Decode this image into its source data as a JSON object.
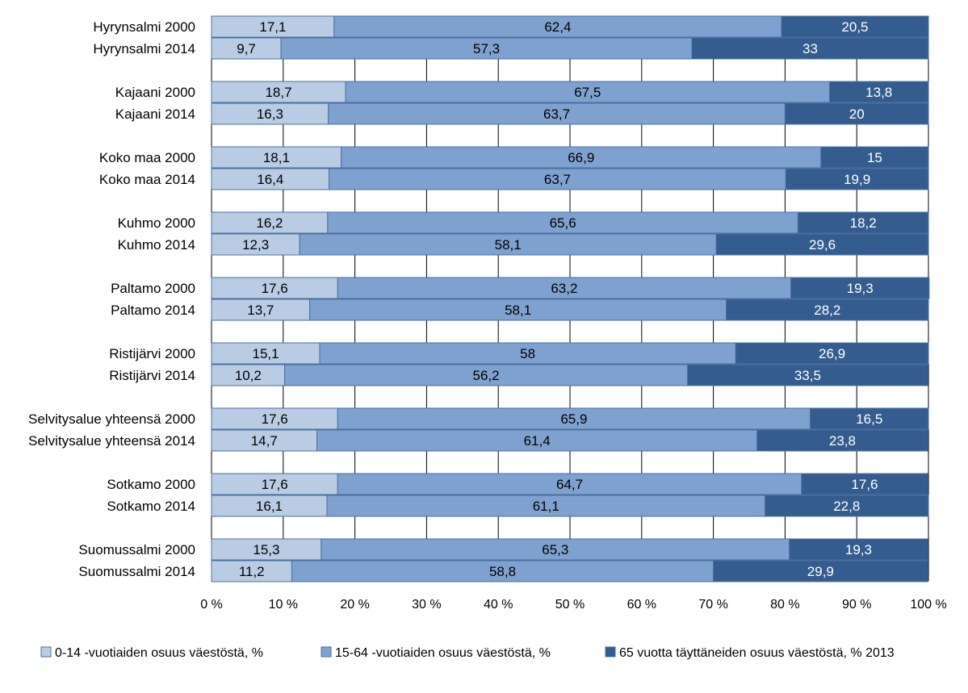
{
  "chart_data": {
    "type": "bar",
    "orientation": "horizontal",
    "stacked": true,
    "percent_scale": true,
    "grid": true,
    "legend_position": "bottom",
    "categories": [
      "Hyrynsalmi 2000",
      "Hyrynsalmi 2014",
      "Kajaani 2000",
      "Kajaani 2014",
      "Koko maa 2000",
      "Koko maa 2014",
      "Kuhmo 2000",
      "Kuhmo 2014",
      "Paltamo 2000",
      "Paltamo 2014",
      "Ristijärvi 2000",
      "Ristijärvi 2014",
      "Selvitysalue yhteensä 2000",
      "Selvitysalue yhteensä 2014",
      "Sotkamo 2000",
      "Sotkamo 2014",
      "Suomussalmi 2000",
      "Suomussalmi 2014"
    ],
    "series": [
      {
        "name": "0-14 -vuotiaiden osuus väestöstä, %",
        "color": "#b9cce4",
        "values": [
          17.1,
          9.7,
          18.7,
          16.3,
          18.1,
          16.4,
          16.2,
          12.3,
          17.6,
          13.7,
          15.1,
          10.2,
          17.6,
          14.7,
          17.6,
          16.1,
          15.3,
          11.2
        ],
        "labels": [
          "17,1",
          "9,7",
          "18,7",
          "16,3",
          "18,1",
          "16,4",
          "16,2",
          "12,3",
          "17,6",
          "13,7",
          "15,1",
          "10,2",
          "17,6",
          "14,7",
          "17,6",
          "16,1",
          "15,3",
          "11,2"
        ]
      },
      {
        "name": "15-64 -vuotiaiden osuus väestöstä, %",
        "color": "#7fa1d0",
        "values": [
          62.4,
          57.3,
          67.5,
          63.7,
          66.9,
          63.7,
          65.6,
          58.1,
          63.2,
          58.1,
          58,
          56.2,
          65.9,
          61.4,
          64.7,
          61.1,
          65.3,
          58.8
        ],
        "labels": [
          "62,4",
          "57,3",
          "67,5",
          "63,7",
          "66,9",
          "63,7",
          "65,6",
          "58,1",
          "63,2",
          "58,1",
          "58",
          "56,2",
          "65,9",
          "61,4",
          "64,7",
          "61,1",
          "65,3",
          "58,8"
        ]
      },
      {
        "name": "65 vuotta täyttäneiden osuus väestöstä, % 2013",
        "color": "#345c8e",
        "values": [
          20.5,
          33,
          13.8,
          20,
          15,
          19.9,
          18.2,
          29.6,
          19.3,
          28.2,
          26.9,
          33.5,
          16.5,
          23.8,
          17.6,
          22.8,
          19.3,
          29.9
        ],
        "labels": [
          "20,5",
          "33",
          "13,8",
          "20",
          "15",
          "19,9",
          "18,2",
          "29,6",
          "19,3",
          "28,2",
          "26,9",
          "33,5",
          "16,5",
          "23,8",
          "17,6",
          "22,8",
          "19,3",
          "29,9"
        ]
      }
    ],
    "xlim": [
      0,
      100
    ],
    "xticks": [
      "0 %",
      "10 %",
      "20 %",
      "30 %",
      "40 %",
      "50 %",
      "60 %",
      "70 %",
      "80 %",
      "90 %",
      "100 %"
    ],
    "colors": {
      "text": "#000000",
      "grid": "#000000",
      "bar_border": "#4a6f9f",
      "label_light": "#ffffff",
      "label_dark": "#000000"
    }
  }
}
